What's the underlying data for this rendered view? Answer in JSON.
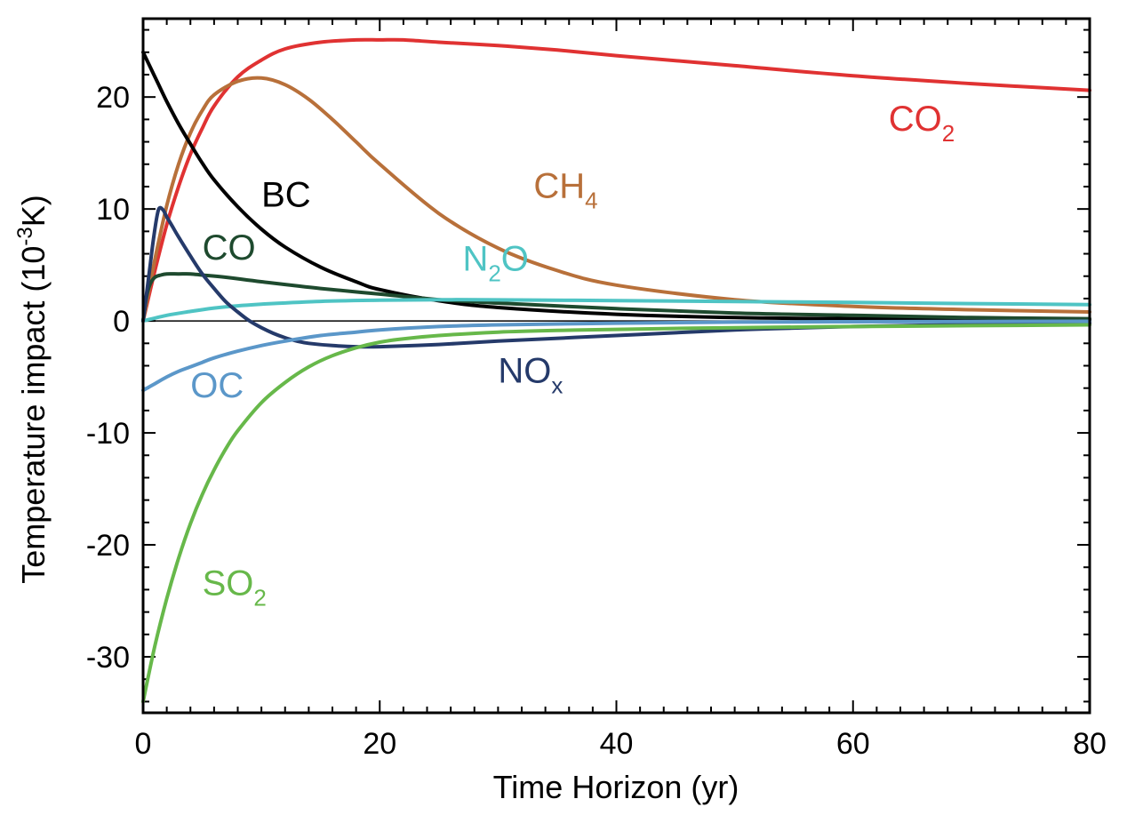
{
  "chart_data": {
    "type": "line",
    "xlabel": "Time Horizon (yr)",
    "ylabel_parts": [
      "Temperature impact (10",
      "-3",
      "K)"
    ],
    "xlim": [
      0,
      80
    ],
    "ylim": [
      -35,
      27
    ],
    "xticks": [
      0,
      20,
      40,
      60,
      80
    ],
    "xtick_labels": [
      "0",
      "20",
      "40",
      "60",
      "80"
    ],
    "yticks": [
      -30,
      -20,
      -10,
      0,
      10,
      20
    ],
    "ytick_labels": [
      "-30",
      "-20",
      "-10",
      "0",
      "10",
      "20"
    ],
    "x_minor_step": 2,
    "y_minor_step": 2,
    "zero_line": true,
    "grid": false,
    "series": [
      {
        "name": "CO2",
        "label": "CO",
        "label_sub": "2",
        "color": "#e03232",
        "label_x": 63,
        "label_y": 17,
        "x": [
          0,
          1,
          2,
          3,
          4,
          5,
          6,
          8,
          10,
          12,
          15,
          18,
          20,
          22,
          25,
          30,
          35,
          40,
          50,
          60,
          70,
          80
        ],
        "y": [
          0,
          4.5,
          8.6,
          12,
          14.9,
          17.2,
          19.2,
          21.8,
          23.3,
          24.3,
          24.9,
          25.1,
          25.1,
          25.1,
          24.9,
          24.6,
          24.2,
          23.7,
          22.8,
          21.9,
          21.2,
          20.6
        ]
      },
      {
        "name": "CH4",
        "label": "CH",
        "label_sub": "4",
        "color": "#b8703a",
        "label_x": 33,
        "label_y": 11,
        "x": [
          0,
          1,
          2,
          3,
          4,
          5,
          6,
          8,
          10,
          12,
          14,
          16,
          18,
          20,
          25,
          30,
          35,
          40,
          50,
          60,
          70,
          80
        ],
        "y": [
          0,
          5.5,
          10.3,
          14,
          16.8,
          18.8,
          20.2,
          21.4,
          21.7,
          21.1,
          19.8,
          18,
          16,
          14,
          9.6,
          6.5,
          4.5,
          3.2,
          1.9,
          1.3,
          1,
          0.8
        ]
      },
      {
        "name": "BC",
        "label": "BC",
        "label_sub": "",
        "color": "#000000",
        "label_x": 10,
        "label_y": 10.2,
        "x": [
          0,
          1,
          2,
          3,
          4,
          5,
          6,
          8,
          10,
          12,
          15,
          18,
          20,
          25,
          30,
          40,
          50,
          60,
          70,
          80
        ],
        "y": [
          24,
          21.8,
          19.6,
          17.6,
          15.8,
          14.1,
          12.6,
          10.2,
          8.2,
          6.6,
          4.8,
          3.5,
          2.8,
          1.8,
          1.2,
          0.6,
          0.3,
          0.2,
          0.15,
          0.1
        ]
      },
      {
        "name": "CO",
        "label": "CO",
        "label_sub": "",
        "color": "#1e4a2e",
        "label_x": 5,
        "label_y": 5.5,
        "x": [
          0,
          0.3,
          0.6,
          1,
          1.5,
          2,
          3,
          4,
          5,
          7,
          10,
          15,
          20,
          25,
          30,
          40,
          50,
          60,
          70,
          80
        ],
        "y": [
          0,
          2.2,
          3.3,
          3.9,
          4.1,
          4.2,
          4.2,
          4.2,
          4.1,
          3.9,
          3.5,
          2.9,
          2.4,
          1.9,
          1.6,
          1.1,
          0.7,
          0.5,
          0.3,
          0.2
        ]
      },
      {
        "name": "N2O",
        "label": "N",
        "label_sub": "2",
        "label_suffix": "O",
        "color": "#4fc4c4",
        "label_x": 27,
        "label_y": 4.5,
        "x": [
          0,
          2,
          4,
          6,
          8,
          10,
          15,
          20,
          25,
          30,
          40,
          50,
          60,
          70,
          80
        ],
        "y": [
          0,
          0.5,
          0.85,
          1.15,
          1.35,
          1.5,
          1.75,
          1.85,
          1.9,
          1.88,
          1.82,
          1.74,
          1.65,
          1.55,
          1.45
        ]
      },
      {
        "name": "NOx",
        "label": "NO",
        "label_sub": "x",
        "color": "#253a6a",
        "label_x": 30,
        "label_y": -5.5,
        "x": [
          0,
          0.3,
          0.6,
          0.9,
          1.2,
          1.4,
          1.7,
          2,
          2.5,
          3,
          4,
          5,
          6,
          7,
          8,
          9,
          10,
          11,
          12,
          13,
          14,
          16,
          18,
          20,
          25,
          30,
          40,
          50,
          60,
          70,
          80
        ],
        "y": [
          0,
          2.5,
          5,
          7.5,
          9.5,
          10.1,
          9.9,
          9.3,
          8.4,
          7.5,
          5.8,
          4.2,
          2.9,
          1.7,
          0.8,
          0,
          -0.6,
          -1.1,
          -1.5,
          -1.8,
          -2,
          -2.2,
          -2.3,
          -2.3,
          -2.1,
          -1.8,
          -1.3,
          -0.8,
          -0.5,
          -0.3,
          -0.2
        ]
      },
      {
        "name": "OC",
        "label": "OC",
        "label_sub": "",
        "color": "#5b97c9",
        "label_x": 4,
        "label_y": -6.8,
        "x": [
          0,
          1,
          2,
          3,
          4,
          5,
          6,
          8,
          10,
          12,
          15,
          18,
          20,
          25,
          30,
          40,
          50,
          60,
          70,
          80
        ],
        "y": [
          -6.2,
          -5.6,
          -5,
          -4.5,
          -4.1,
          -3.7,
          -3.3,
          -2.7,
          -2.2,
          -1.8,
          -1.3,
          -1,
          -0.8,
          -0.5,
          -0.35,
          -0.2,
          -0.1,
          -0.07,
          -0.05,
          -0.03
        ]
      },
      {
        "name": "SO2",
        "label": "SO",
        "label_sub": "2",
        "color": "#67b84a",
        "label_x": 5,
        "label_y": -24.5,
        "x": [
          0,
          1,
          2,
          3,
          4,
          5,
          6,
          7,
          8,
          10,
          12,
          14,
          16,
          18,
          20,
          22,
          25,
          30,
          35,
          40,
          50,
          60,
          70,
          80
        ],
        "y": [
          -34,
          -29,
          -24.8,
          -21.2,
          -18.1,
          -15.5,
          -13.3,
          -11.4,
          -9.8,
          -7.3,
          -5.5,
          -4.1,
          -3.1,
          -2.4,
          -1.9,
          -1.6,
          -1.3,
          -1,
          -0.85,
          -0.75,
          -0.6,
          -0.5,
          -0.42,
          -0.35
        ]
      }
    ]
  }
}
